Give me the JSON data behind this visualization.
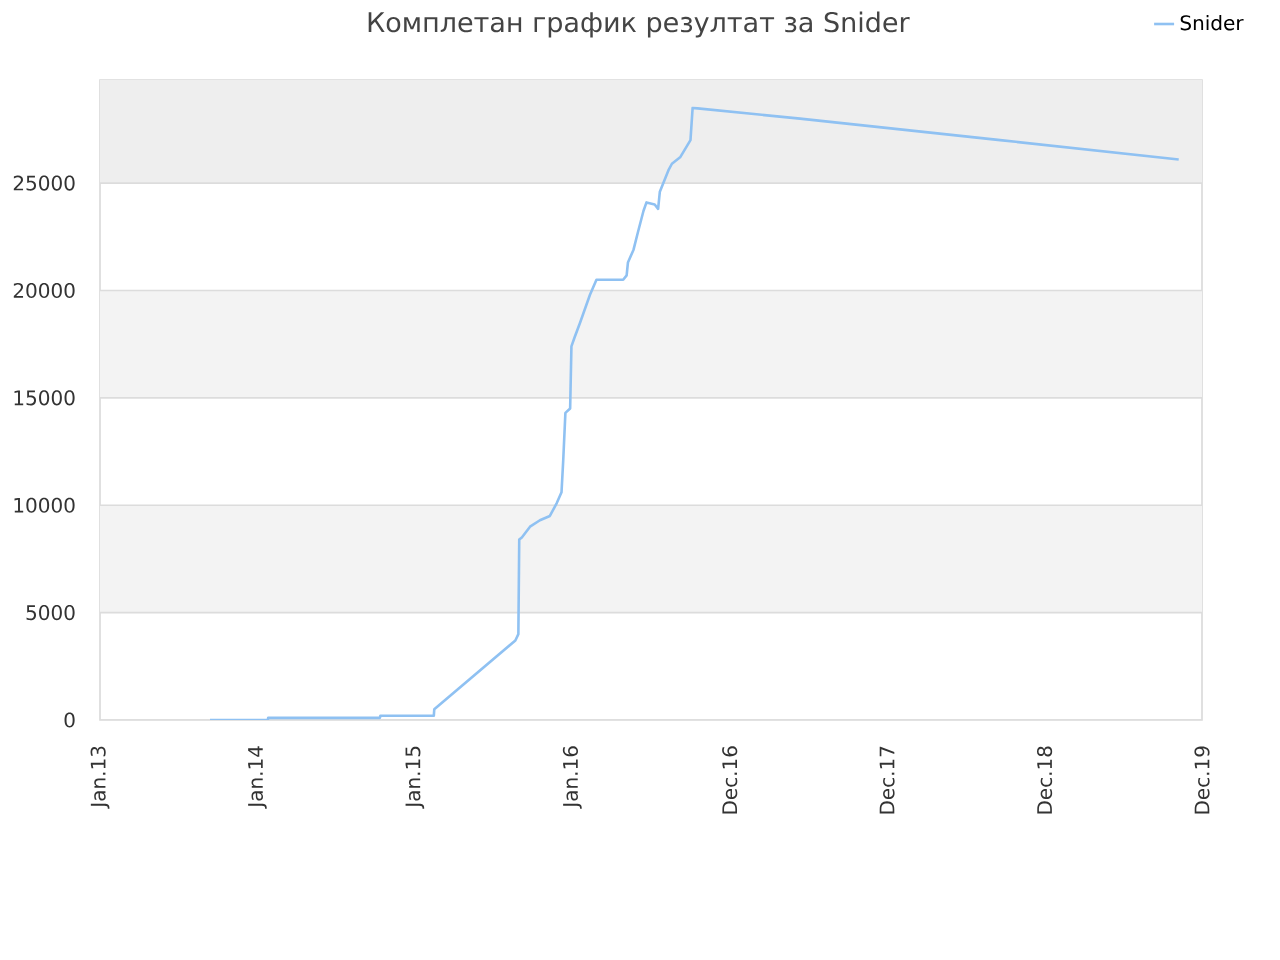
{
  "chart_data": {
    "type": "line",
    "title": "Комплетан график резултат за Snider",
    "x": [
      "2013-09-13",
      "2014-01-25",
      "2014-01-26",
      "2014-10-12",
      "2014-10-13",
      "2015-02-14",
      "2015-02-15",
      "2015-08-22",
      "2015-08-29",
      "2015-08-31",
      "2015-09-06",
      "2015-09-25",
      "2015-10-18",
      "2015-11-10",
      "2015-11-26",
      "2015-12-07",
      "2015-12-11",
      "2015-12-16",
      "2015-12-27",
      "2015-12-30",
      "2016-01-06",
      "2016-01-19",
      "2016-02-11",
      "2016-02-26",
      "2016-04-28",
      "2016-05-06",
      "2016-05-09",
      "2016-05-22",
      "2016-06-01",
      "2016-06-14",
      "2016-06-21",
      "2016-07-10",
      "2016-07-18",
      "2016-07-22",
      "2016-08-11",
      "2016-08-19",
      "2016-09-07",
      "2016-10-01",
      "2016-10-06",
      "2017-06-12",
      "2018-09-19",
      "2019-11-07"
    ],
    "series": [
      {
        "name": "Snider",
        "color": "#8fc1f2",
        "values": [
          0,
          0,
          100,
          100,
          200,
          200,
          500,
          3700,
          4000,
          8400,
          8500,
          9000,
          9300,
          9500,
          10100,
          10600,
          12100,
          14300,
          14500,
          17400,
          17800,
          18500,
          19800,
          20500,
          20500,
          20700,
          21300,
          21900,
          22700,
          23700,
          24100,
          24000,
          23800,
          24600,
          25600,
          25900,
          26200,
          27000,
          28500,
          28000,
          27000,
          26100
        ]
      }
    ],
    "xlim": [
      "2013-01-01",
      "2019-12-31"
    ],
    "xticks": [
      {
        "value": "2013-01-01",
        "label": "Jan.13"
      },
      {
        "value": "2014-01-01",
        "label": "Jan.14"
      },
      {
        "value": "2015-01-01",
        "label": "Jan.15"
      },
      {
        "value": "2016-01-01",
        "label": "Jan.16"
      },
      {
        "value": "2016-12-31",
        "label": "Dec.16"
      },
      {
        "value": "2017-12-31",
        "label": "Dec.17"
      },
      {
        "value": "2018-12-31",
        "label": "Dec.18"
      },
      {
        "value": "2019-12-31",
        "label": "Dec.19"
      }
    ],
    "ylim": [
      0,
      29800
    ],
    "yticks": [
      0,
      5000,
      10000,
      15000,
      20000,
      25000
    ],
    "grid": "y",
    "legend": "top right",
    "bands": [
      {
        "axis": "y",
        "from": 5000,
        "to": 10000,
        "color": "#f3f3f3"
      },
      {
        "axis": "y",
        "from": 15000,
        "to": 20000,
        "color": "#f3f3f3"
      },
      {
        "axis": "y",
        "from": 25000,
        "to": 29800,
        "color": "#eeeeee"
      }
    ]
  }
}
